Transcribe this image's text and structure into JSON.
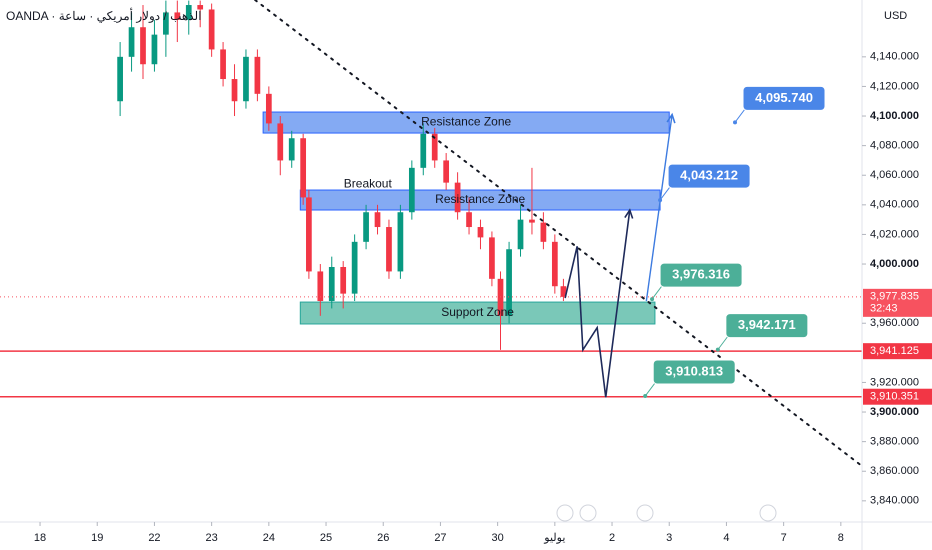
{
  "chart_data": {
    "type": "candlestick",
    "header": "OANDA · الذهب / دولار أمريكي · ساعة",
    "currency": "USD",
    "up_color": "#089981",
    "down_color": "#f23645",
    "candles": {
      "x": [
        1.4,
        1.6,
        1.8,
        2.0,
        2.2,
        2.4,
        2.6,
        2.8,
        3.0,
        3.2,
        3.4,
        3.6,
        3.8,
        4.0,
        4.2,
        4.4,
        4.6,
        4.7,
        4.9,
        5.1,
        5.3,
        5.5,
        5.7,
        5.9,
        6.1,
        6.3,
        6.5,
        6.7,
        6.9,
        7.1,
        7.3,
        7.5,
        7.7,
        7.9,
        8.05,
        8.2,
        8.4,
        8.6,
        8.8,
        9.0,
        9.15
      ],
      "open": [
        4110,
        4140,
        4160,
        4135,
        4155,
        4170,
        4165,
        4175,
        4172,
        4145,
        4125,
        4110,
        4140,
        4115,
        4095,
        4070,
        4085,
        4045,
        3995,
        3975,
        3998,
        3980,
        4015,
        4035,
        4025,
        3995,
        4035,
        4065,
        4088,
        4070,
        4055,
        4035,
        4025,
        4018,
        3990,
        3965,
        4010,
        4030,
        4028,
        4015,
        3985
      ],
      "high": [
        4150,
        4170,
        4175,
        4165,
        4178,
        4178,
        4178,
        4178,
        4176,
        4150,
        4135,
        4145,
        4145,
        4120,
        4100,
        4090,
        4088,
        4050,
        4000,
        4005,
        4002,
        4020,
        4040,
        4040,
        4030,
        4040,
        4070,
        4095,
        4092,
        4075,
        4062,
        4045,
        4030,
        4022,
        3995,
        4015,
        4040,
        4065,
        4035,
        4020,
        3990
      ],
      "low": [
        4100,
        4130,
        4125,
        4130,
        4140,
        4150,
        4155,
        4160,
        4140,
        4120,
        4100,
        4105,
        4110,
        4090,
        4060,
        4065,
        4040,
        3990,
        3965,
        3970,
        3970,
        3975,
        4010,
        4020,
        3990,
        3990,
        4030,
        4060,
        4065,
        4050,
        4030,
        4020,
        4010,
        3985,
        3942,
        3960,
        4005,
        4020,
        4010,
        3980,
        3975
      ],
      "close": [
        4140,
        4160,
        4135,
        4155,
        4170,
        4165,
        4175,
        4172,
        4145,
        4125,
        4110,
        4140,
        4115,
        4095,
        4070,
        4085,
        4045,
        3995,
        3975,
        3998,
        3980,
        4015,
        4035,
        4025,
        3995,
        4035,
        4065,
        4088,
        4070,
        4055,
        4035,
        4025,
        4018,
        3990,
        3965,
        4010,
        4030,
        4028,
        4015,
        3985,
        3977.835
      ]
    },
    "xlim": [
      -0.7,
      14.37
    ],
    "xticks": [
      {
        "value": 0,
        "label": "18"
      },
      {
        "value": 1,
        "label": "19"
      },
      {
        "value": 2,
        "label": "22"
      },
      {
        "value": 3,
        "label": "23"
      },
      {
        "value": 4,
        "label": "24"
      },
      {
        "value": 5,
        "label": "25"
      },
      {
        "value": 6,
        "label": "26"
      },
      {
        "value": 7,
        "label": "27"
      },
      {
        "value": 8,
        "label": "30"
      },
      {
        "value": 9,
        "label": "يوليو"
      },
      {
        "value": 10,
        "label": "2"
      },
      {
        "value": 11,
        "label": "3"
      },
      {
        "value": 12,
        "label": "4"
      },
      {
        "value": 13,
        "label": "7"
      },
      {
        "value": 14,
        "label": "8"
      }
    ],
    "ylim": [
      3825.7,
      4178.4
    ],
    "yticks": [
      {
        "value": 3840,
        "label": "3,840.000"
      },
      {
        "value": 3860,
        "label": "3,860.000"
      },
      {
        "value": 3880,
        "label": "3,880.000"
      },
      {
        "value": 3900,
        "label": "3,900.000"
      },
      {
        "value": 3920,
        "label": "3,920.000"
      },
      {
        "value": 3960,
        "label": "3,960.000"
      },
      {
        "value": 4000,
        "label": "4,000.000"
      },
      {
        "value": 4020,
        "label": "4,020.000"
      },
      {
        "value": 4040,
        "label": "4,040.000"
      },
      {
        "value": 4060,
        "label": "4,060.000"
      },
      {
        "value": 4080,
        "label": "4,080.000"
      },
      {
        "value": 4100,
        "label": "4,100.000"
      },
      {
        "value": 4120,
        "label": "4,120.000"
      },
      {
        "value": 4140,
        "label": "4,140.000"
      }
    ],
    "zones": [
      {
        "label": "Resistance Zone",
        "x": [
          3.9,
          11.0
        ],
        "y": [
          4088.5,
          4102.7
        ],
        "color": "#5b8def",
        "border": "#2962ff"
      },
      {
        "label": "Resistance Zone",
        "x": [
          4.55,
          10.84
        ],
        "y": [
          4036.5,
          4050
        ],
        "color": "#5b8def",
        "border": "#2962ff"
      },
      {
        "label": "Support Zone",
        "x": [
          4.55,
          10.75
        ],
        "y": [
          3959.5,
          3974.3
        ],
        "color": "#4db6a0",
        "border": "#26a69a"
      }
    ],
    "annotations": [
      {
        "text": "Breakout",
        "x": 5.73,
        "y": 4054
      }
    ],
    "trendline": {
      "x": [
        3.76,
        14.37
      ],
      "y": [
        4178.4,
        3863.5
      ],
      "color": "#131722"
    },
    "projection": {
      "x": [
        9.18,
        9.39,
        9.49,
        9.74,
        9.89,
        10.31
      ],
      "y": [
        3977,
        4012,
        3942,
        3957,
        3910,
        4036.5
      ],
      "color": "#1e2a5a"
    },
    "arrow": {
      "x": [
        10.6,
        11.05
      ],
      "y": [
        3975,
        4101
      ],
      "color": "#3d7be0"
    },
    "callouts": [
      {
        "value": 4095.74,
        "label": "4,095.740",
        "x": 12.15,
        "color": "#4a86e8"
      },
      {
        "value": 4043.212,
        "label": "4,043.212",
        "x": 10.84,
        "color": "#4a86e8"
      },
      {
        "value": 3976.316,
        "label": "3,976.316",
        "x": 10.7,
        "color": "#4caf98"
      },
      {
        "value": 3942.171,
        "label": "3,942.171",
        "x": 11.85,
        "color": "#4caf98"
      },
      {
        "value": 3910.813,
        "label": "3,910.813",
        "x": 10.58,
        "color": "#4caf98"
      }
    ],
    "hlines": [
      {
        "value": 3941.125,
        "label": "3,941.125",
        "color": "#f23645"
      },
      {
        "value": 3910.351,
        "label": "3,910.351",
        "color": "#f23645"
      }
    ],
    "last_price": {
      "value": 3977.835,
      "label": "3,977.835",
      "countdown": "32:43",
      "color": "#f7525f"
    }
  }
}
